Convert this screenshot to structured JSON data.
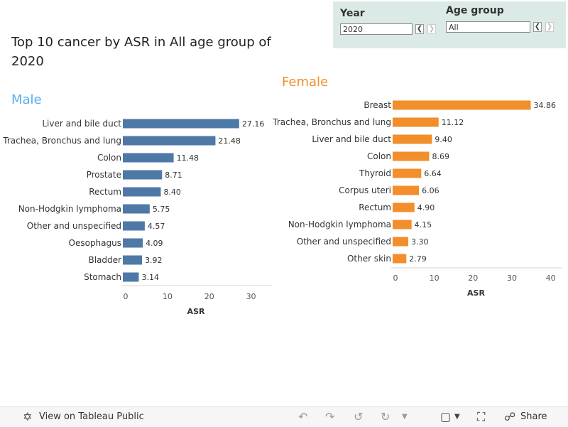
{
  "title": "Top 10 cancer by ASR in All age group  of 2020",
  "filters": {
    "year": {
      "label": "Year",
      "value": "2020"
    },
    "age_group": {
      "label": "Age group",
      "value": "All"
    }
  },
  "toolbar": {
    "view_label": "View on Tableau Public",
    "share_label": "Share"
  },
  "colors": {
    "male": "#4e79a7",
    "female": "#f28e2b",
    "male_label": "#56aef0",
    "female_label": "#f28e2b",
    "filter_bg": "#dbeae6"
  },
  "chart_data": [
    {
      "type": "bar",
      "orientation": "horizontal",
      "title": "Male",
      "xlabel": "ASR",
      "xlim": [
        0,
        35
      ],
      "xticks": [
        0,
        10,
        20,
        30
      ],
      "categories": [
        "Liver and bile duct",
        "Trachea, Bronchus and lung",
        "Colon",
        "Prostate",
        "Rectum",
        "Non-Hodgkin lymphoma",
        "Other and unspecified",
        "Oesophagus",
        "Bladder",
        "Stomach"
      ],
      "values": [
        27.16,
        21.48,
        11.48,
        8.71,
        8.4,
        5.75,
        4.57,
        4.09,
        3.92,
        3.14
      ],
      "value_labels": [
        "27.16",
        "21.48",
        "11.48",
        "8.71",
        "8.40",
        "5.75",
        "4.57",
        "4.09",
        "3.92",
        "3.14"
      ]
    },
    {
      "type": "bar",
      "orientation": "horizontal",
      "title": "Female",
      "xlabel": "ASR",
      "xlim": [
        0,
        43
      ],
      "xticks": [
        0,
        10,
        20,
        30,
        40
      ],
      "categories": [
        "Breast",
        "Trachea, Bronchus and lung",
        "Liver and bile duct",
        "Colon",
        "Thyroid",
        "Corpus uteri",
        "Rectum",
        "Non-Hodgkin lymphoma",
        "Other and unspecified",
        "Other skin"
      ],
      "values": [
        34.86,
        11.12,
        9.4,
        8.69,
        6.64,
        6.06,
        4.9,
        4.15,
        3.3,
        2.79
      ],
      "value_labels": [
        "34.86",
        "11.12",
        "9.40",
        "8.69",
        "6.64",
        "6.06",
        "4.90",
        "4.15",
        "3.30",
        "2.79"
      ]
    }
  ]
}
